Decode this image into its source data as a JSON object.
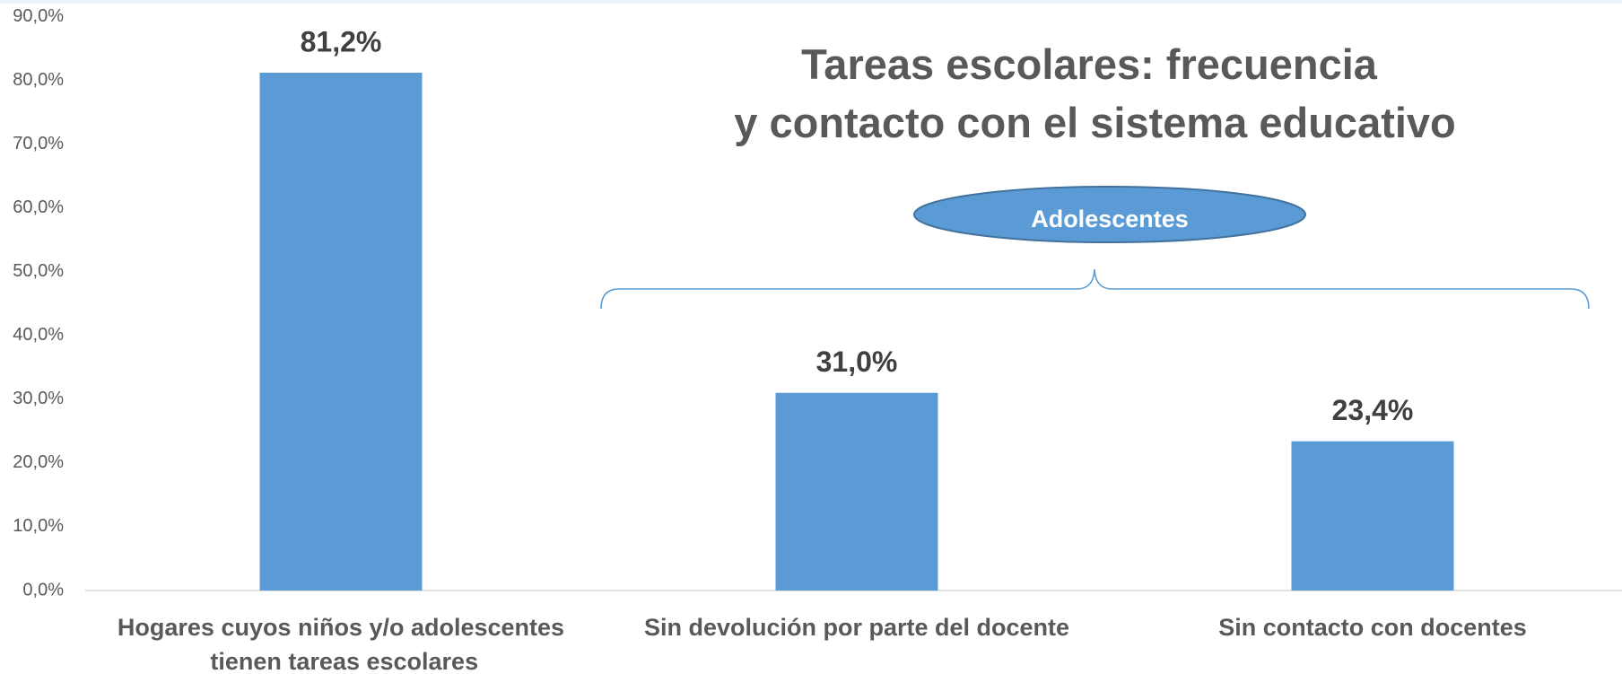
{
  "chart_data": {
    "type": "bar",
    "title": "Tareas escolares: frecuencia\ny contacto con el sistema educativo",
    "annotation": "Adolescentes",
    "categories": [
      "Hogares cuyos niños y/o adolescentes\ntienen tareas escolares",
      "Sin devolución por parte del docente",
      "Sin contacto con docentes"
    ],
    "values": [
      81.2,
      31.0,
      23.4
    ],
    "value_labels": [
      "81,2%",
      "31,0%",
      "23,4%"
    ],
    "color": "#5b9bd5",
    "ylim": [
      0,
      90
    ],
    "yticks": [
      {
        "value": 0,
        "label": "0,0%"
      },
      {
        "value": 10,
        "label": "10,0%"
      },
      {
        "value": 20,
        "label": "20,0%"
      },
      {
        "value": 30,
        "label": "30,0%"
      },
      {
        "value": 40,
        "label": "40,0%"
      },
      {
        "value": 50,
        "label": "50,0%"
      },
      {
        "value": 60,
        "label": "60,0%"
      },
      {
        "value": 70,
        "label": "70,0%"
      },
      {
        "value": 80,
        "label": "80,0%"
      },
      {
        "value": 90,
        "label": "90,0%"
      }
    ],
    "grid": false
  }
}
